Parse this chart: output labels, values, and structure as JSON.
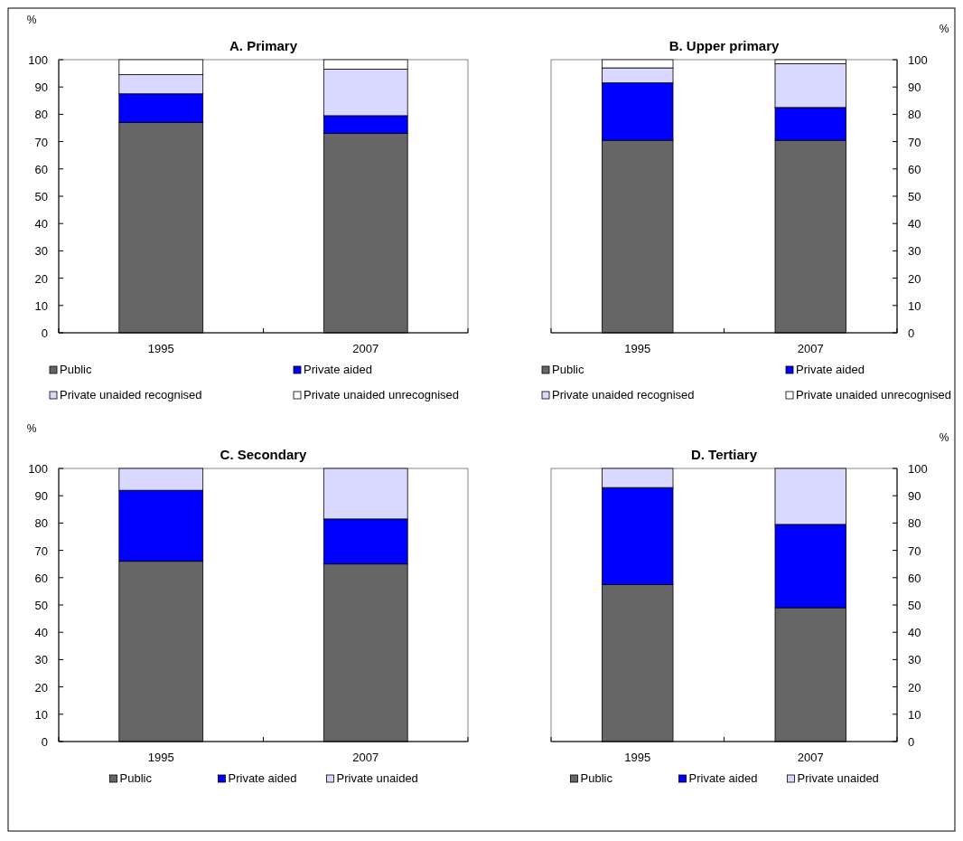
{
  "chart_data": [
    {
      "type": "bar",
      "title": "A. Primary",
      "ylabel": "%",
      "categories": [
        "1995",
        "2007"
      ],
      "stacked": true,
      "legend": "bottom",
      "ylim": [
        0,
        100
      ],
      "yticks": [
        0,
        10,
        20,
        30,
        40,
        50,
        60,
        70,
        80,
        90,
        100
      ],
      "series": [
        {
          "name": "Public",
          "color": "#666666",
          "values": [
            77,
            73
          ]
        },
        {
          "name": "Private aided",
          "color": "#0000ff",
          "values": [
            10.5,
            6.5
          ]
        },
        {
          "name": "Private unaided recognised",
          "color": "#d9d9ff",
          "values": [
            7,
            17
          ]
        },
        {
          "name": "Private unaided unrecognised",
          "color": "#ffffff",
          "values": [
            5.5,
            3.5
          ]
        }
      ]
    },
    {
      "type": "bar",
      "title": "B. Upper primary",
      "ylabel": "%",
      "categories": [
        "1995",
        "2007"
      ],
      "stacked": true,
      "legend": "bottom",
      "ylim": [
        0,
        100
      ],
      "yticks": [
        0,
        10,
        20,
        30,
        40,
        50,
        60,
        70,
        80,
        90,
        100
      ],
      "series": [
        {
          "name": "Public",
          "color": "#666666",
          "values": [
            70.5,
            70.5
          ]
        },
        {
          "name": "Private aided",
          "color": "#0000ff",
          "values": [
            21,
            12
          ]
        },
        {
          "name": "Private unaided recognised",
          "color": "#d9d9ff",
          "values": [
            5.5,
            16
          ]
        },
        {
          "name": "Private unaided unrecognised",
          "color": "#ffffff",
          "values": [
            3,
            1.5
          ]
        }
      ]
    },
    {
      "type": "bar",
      "title": "C. Secondary",
      "ylabel": "%",
      "categories": [
        "1995",
        "2007"
      ],
      "stacked": true,
      "legend": "bottom",
      "ylim": [
        0,
        100
      ],
      "yticks": [
        0,
        10,
        20,
        30,
        40,
        50,
        60,
        70,
        80,
        90,
        100
      ],
      "series": [
        {
          "name": "Public",
          "color": "#666666",
          "values": [
            66,
            65
          ]
        },
        {
          "name": "Private aided",
          "color": "#0000ff",
          "values": [
            26,
            16.5
          ]
        },
        {
          "name": "Private unaided",
          "color": "#d9d9ff",
          "values": [
            8,
            18.5
          ]
        }
      ]
    },
    {
      "type": "bar",
      "title": "D. Tertiary",
      "ylabel": "%",
      "categories": [
        "1995",
        "2007"
      ],
      "stacked": true,
      "legend": "bottom",
      "ylim": [
        0,
        100
      ],
      "yticks": [
        0,
        10,
        20,
        30,
        40,
        50,
        60,
        70,
        80,
        90,
        100
      ],
      "series": [
        {
          "name": "Public",
          "color": "#666666",
          "values": [
            57.5,
            49
          ]
        },
        {
          "name": "Private aided",
          "color": "#0000ff",
          "values": [
            35.5,
            30.5
          ]
        },
        {
          "name": "Private unaided",
          "color": "#d9d9ff",
          "values": [
            7,
            20.5
          ]
        }
      ]
    }
  ]
}
